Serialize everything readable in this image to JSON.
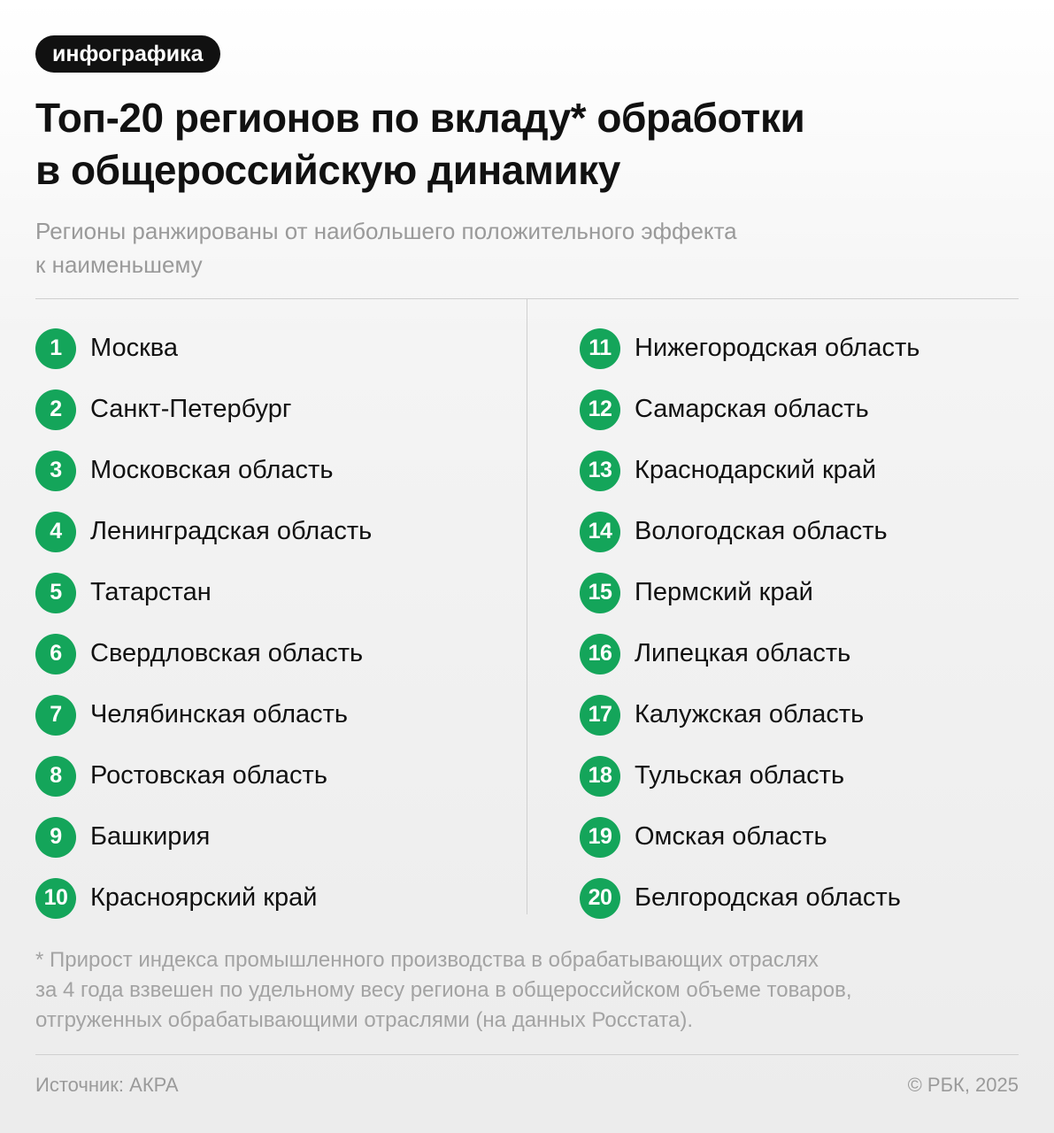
{
  "tag": "инфографика",
  "title": {
    "line1": "Топ-20 регионов по вкладу* обработки",
    "line2": "в общероссийскую динамику"
  },
  "subtitle": {
    "line1": "Регионы ранжированы от наибольшего положительного эффекта",
    "line2": "к наименьшему"
  },
  "colors": {
    "accent": "#14a55a",
    "tag_bg": "#111111",
    "muted_text": "#9a9a9a"
  },
  "regions_left": [
    {
      "rank": "1",
      "name": "Москва"
    },
    {
      "rank": "2",
      "name": "Санкт-Петербург"
    },
    {
      "rank": "3",
      "name": "Московская область"
    },
    {
      "rank": "4",
      "name": "Ленинградская область"
    },
    {
      "rank": "5",
      "name": "Татарстан"
    },
    {
      "rank": "6",
      "name": "Свердловская область"
    },
    {
      "rank": "7",
      "name": "Челябинская область"
    },
    {
      "rank": "8",
      "name": "Ростовская область"
    },
    {
      "rank": "9",
      "name": "Башкирия"
    },
    {
      "rank": "10",
      "name": "Красноярский край"
    }
  ],
  "regions_right": [
    {
      "rank": "11",
      "name": "Нижегородская область"
    },
    {
      "rank": "12",
      "name": "Самарская область"
    },
    {
      "rank": "13",
      "name": "Краснодарский край"
    },
    {
      "rank": "14",
      "name": "Вологодская область"
    },
    {
      "rank": "15",
      "name": "Пермский край"
    },
    {
      "rank": "16",
      "name": "Липецкая область"
    },
    {
      "rank": "17",
      "name": "Калужская область"
    },
    {
      "rank": "18",
      "name": "Тульская область"
    },
    {
      "rank": "19",
      "name": "Омская область"
    },
    {
      "rank": "20",
      "name": "Белгородская область"
    }
  ],
  "footnote": {
    "line1": "* Прирост индекса промышленного производства в обрабатывающих отраслях",
    "line2": "за 4 года взвешен по удельному весу региона в общероссийском объеме товаров,",
    "line3": "отгруженных обрабатывающими отраслями (на данных Росстата)."
  },
  "source": "Источник: АКРА",
  "copyright": "© РБК, 2025"
}
